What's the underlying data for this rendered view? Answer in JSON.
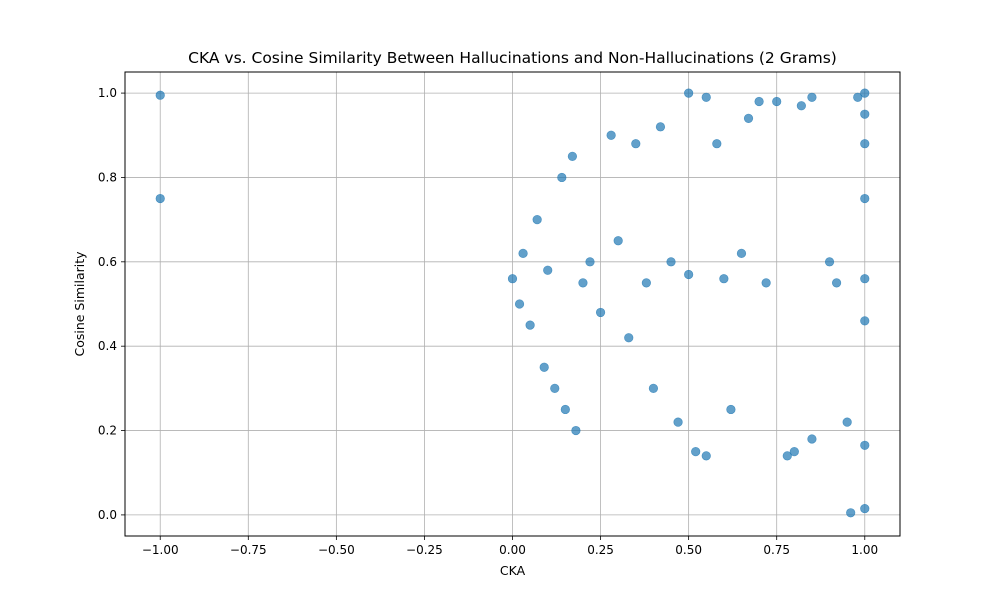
{
  "chart_data": {
    "type": "scatter",
    "title": "CKA vs. Cosine Similarity Between Hallucinations and Non-Hallucinations (2 Grams)",
    "xlabel": "CKA",
    "ylabel": "Cosine Similarity",
    "xlim": [
      -1.1,
      1.1
    ],
    "ylim": [
      -0.05,
      1.05
    ],
    "xticks": [
      -1.0,
      -0.75,
      -0.5,
      -0.25,
      0.0,
      0.25,
      0.5,
      0.75,
      1.0
    ],
    "xtick_labels": [
      "−1.00",
      "−0.75",
      "−0.50",
      "−0.25",
      "0.00",
      "0.25",
      "0.50",
      "0.75",
      "1.00"
    ],
    "yticks": [
      0.0,
      0.2,
      0.4,
      0.6,
      0.8,
      1.0
    ],
    "ytick_labels": [
      "0.0",
      "0.2",
      "0.4",
      "0.6",
      "0.8",
      "1.0"
    ],
    "grid": true,
    "marker_color": "#1f77b4",
    "marker_alpha": 0.7,
    "series": [
      {
        "points": [
          [
            -1.0,
            0.995
          ],
          [
            -1.0,
            0.75
          ],
          [
            0.0,
            0.56
          ],
          [
            0.02,
            0.5
          ],
          [
            0.03,
            0.62
          ],
          [
            0.05,
            0.45
          ],
          [
            0.07,
            0.7
          ],
          [
            0.09,
            0.35
          ],
          [
            0.1,
            0.58
          ],
          [
            0.12,
            0.3
          ],
          [
            0.14,
            0.8
          ],
          [
            0.15,
            0.25
          ],
          [
            0.17,
            0.85
          ],
          [
            0.18,
            0.2
          ],
          [
            0.2,
            0.55
          ],
          [
            0.22,
            0.6
          ],
          [
            0.25,
            0.48
          ],
          [
            0.28,
            0.9
          ],
          [
            0.3,
            0.65
          ],
          [
            0.33,
            0.42
          ],
          [
            0.35,
            0.88
          ],
          [
            0.38,
            0.55
          ],
          [
            0.4,
            0.3
          ],
          [
            0.42,
            0.92
          ],
          [
            0.45,
            0.6
          ],
          [
            0.47,
            0.22
          ],
          [
            0.5,
            1.0
          ],
          [
            0.5,
            0.57
          ],
          [
            0.52,
            0.15
          ],
          [
            0.55,
            0.99
          ],
          [
            0.55,
            0.14
          ],
          [
            0.58,
            0.88
          ],
          [
            0.6,
            0.56
          ],
          [
            0.62,
            0.25
          ],
          [
            0.65,
            0.62
          ],
          [
            0.67,
            0.94
          ],
          [
            0.7,
            0.98
          ],
          [
            0.72,
            0.55
          ],
          [
            0.75,
            0.98
          ],
          [
            0.78,
            0.14
          ],
          [
            0.8,
            0.15
          ],
          [
            0.82,
            0.97
          ],
          [
            0.85,
            0.99
          ],
          [
            0.85,
            0.18
          ],
          [
            0.9,
            0.6
          ],
          [
            0.92,
            0.55
          ],
          [
            0.95,
            0.22
          ],
          [
            0.96,
            0.005
          ],
          [
            0.98,
            0.99
          ],
          [
            1.0,
            1.0
          ],
          [
            1.0,
            0.95
          ],
          [
            1.0,
            0.88
          ],
          [
            1.0,
            0.75
          ],
          [
            1.0,
            0.56
          ],
          [
            1.0,
            0.46
          ],
          [
            1.0,
            0.165
          ],
          [
            1.0,
            0.015
          ]
        ]
      }
    ]
  }
}
